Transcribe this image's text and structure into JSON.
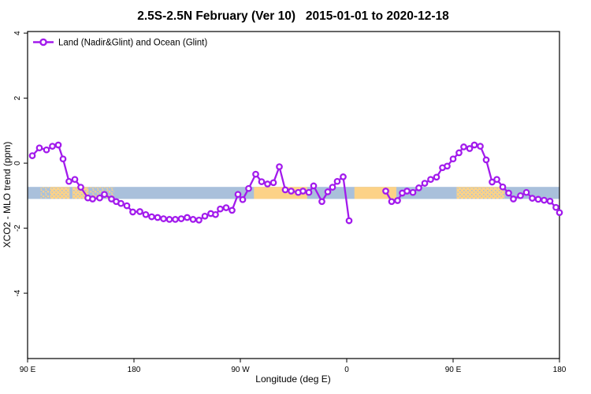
{
  "chart_data": {
    "type": "line",
    "title": "2.5S-2.5N February (Ver 10)   2015-01-01 to 2020-12-18",
    "xlabel": "Longitude (deg E)",
    "ylabel": "XCO2 - MLO trend (ppm)",
    "legend": [
      {
        "label": "Land (Nadir&Glint) and Ocean (Glint)",
        "marker": "open-circle-on-line",
        "color": "#a21aec"
      }
    ],
    "x_axis": {
      "range": [
        90,
        540
      ],
      "ticks": [
        {
          "pos": 90,
          "label": "90 E"
        },
        {
          "pos": 180,
          "label": "180"
        },
        {
          "pos": 270,
          "label": "90 W"
        },
        {
          "pos": 360,
          "label": "0"
        },
        {
          "pos": 450,
          "label": "90 E"
        },
        {
          "pos": 540,
          "label": "180"
        }
      ]
    },
    "y_axis": {
      "range": [
        -6.01,
        4.05
      ],
      "ticks": [
        {
          "pos": -4,
          "label": "-4"
        },
        {
          "pos": -2,
          "label": "-2"
        },
        {
          "pos": 0,
          "label": "0"
        },
        {
          "pos": 2,
          "label": "2"
        },
        {
          "pos": 4,
          "label": "4"
        }
      ]
    },
    "band": {
      "y_top": -0.73,
      "y_bottom": -1.1,
      "ocean_color": "#a9c0db",
      "land_color": "#fcd287",
      "land_segments": [
        {
          "from": 101,
          "to": 108,
          "style": "sparse"
        },
        {
          "from": 109,
          "to": 125.5,
          "style": "dense"
        },
        {
          "from": 128,
          "to": 141.5,
          "style": "dense"
        },
        {
          "from": 143,
          "to": 163,
          "style": "sparse"
        },
        {
          "from": 281.5,
          "to": 326.5,
          "style": "solid"
        },
        {
          "from": 366.5,
          "to": 402,
          "style": "solid"
        },
        {
          "from": 453,
          "to": 493.5,
          "style": "dense"
        }
      ]
    },
    "series": [
      {
        "name": "Land (Nadir&Glint) and Ocean (Glint)",
        "color": "#a21aec",
        "marker_fill": "#ffffff",
        "segments": [
          [
            [
              94,
              0.23
            ],
            [
              100,
              0.47
            ],
            [
              106,
              0.41
            ],
            [
              111,
              0.52
            ],
            [
              116,
              0.56
            ],
            [
              120,
              0.13
            ],
            [
              125,
              -0.56
            ],
            [
              130,
              -0.5
            ],
            [
              135,
              -0.74
            ],
            [
              141,
              -1.07
            ],
            [
              145,
              -1.1
            ],
            [
              151,
              -1.07
            ],
            [
              155,
              -0.96
            ],
            [
              161,
              -1.1
            ],
            [
              165,
              -1.18
            ],
            [
              169,
              -1.24
            ],
            [
              174,
              -1.31
            ],
            [
              179,
              -1.5
            ],
            [
              185,
              -1.49
            ],
            [
              190,
              -1.58
            ],
            [
              195,
              -1.65
            ],
            [
              200,
              -1.67
            ],
            [
              205,
              -1.71
            ],
            [
              210,
              -1.73
            ],
            [
              215,
              -1.73
            ],
            [
              220,
              -1.71
            ],
            [
              225,
              -1.67
            ],
            [
              230,
              -1.73
            ],
            [
              235,
              -1.75
            ],
            [
              240,
              -1.63
            ],
            [
              245,
              -1.55
            ],
            [
              249,
              -1.58
            ],
            [
              253,
              -1.41
            ],
            [
              258,
              -1.37
            ],
            [
              263,
              -1.45
            ],
            [
              268,
              -0.96
            ],
            [
              272,
              -1.12
            ],
            [
              277,
              -0.78
            ],
            [
              283,
              -0.34
            ],
            [
              288,
              -0.57
            ],
            [
              293,
              -0.64
            ],
            [
              298,
              -0.6
            ],
            [
              303,
              -0.11
            ],
            [
              308,
              -0.82
            ],
            [
              313,
              -0.86
            ],
            [
              319,
              -0.9
            ],
            [
              323,
              -0.86
            ],
            [
              328,
              -0.9
            ],
            [
              332,
              -0.7
            ],
            [
              339,
              -1.18
            ],
            [
              344,
              -0.88
            ],
            [
              348,
              -0.74
            ],
            [
              352,
              -0.56
            ],
            [
              357,
              -0.42
            ],
            [
              362,
              -1.77
            ]
          ],
          [
            [
              393,
              -0.86
            ],
            [
              398,
              -1.18
            ],
            [
              403,
              -1.15
            ],
            [
              407,
              -0.92
            ],
            [
              411,
              -0.86
            ],
            [
              416,
              -0.9
            ],
            [
              421,
              -0.76
            ],
            [
              426,
              -0.62
            ],
            [
              431,
              -0.5
            ],
            [
              436,
              -0.43
            ],
            [
              441,
              -0.14
            ],
            [
              445,
              -0.09
            ],
            [
              450,
              0.13
            ],
            [
              455,
              0.32
            ],
            [
              459,
              0.5
            ],
            [
              464,
              0.45
            ],
            [
              468,
              0.56
            ],
            [
              473,
              0.52
            ],
            [
              478,
              0.1
            ],
            [
              483,
              -0.58
            ],
            [
              487,
              -0.5
            ],
            [
              492,
              -0.73
            ],
            [
              497,
              -0.92
            ],
            [
              501,
              -1.1
            ],
            [
              507,
              -1.0
            ],
            [
              512,
              -0.9
            ],
            [
              517,
              -1.08
            ],
            [
              522,
              -1.11
            ],
            [
              527,
              -1.14
            ],
            [
              532,
              -1.17
            ],
            [
              537,
              -1.36
            ],
            [
              540,
              -1.52
            ]
          ]
        ]
      }
    ]
  }
}
